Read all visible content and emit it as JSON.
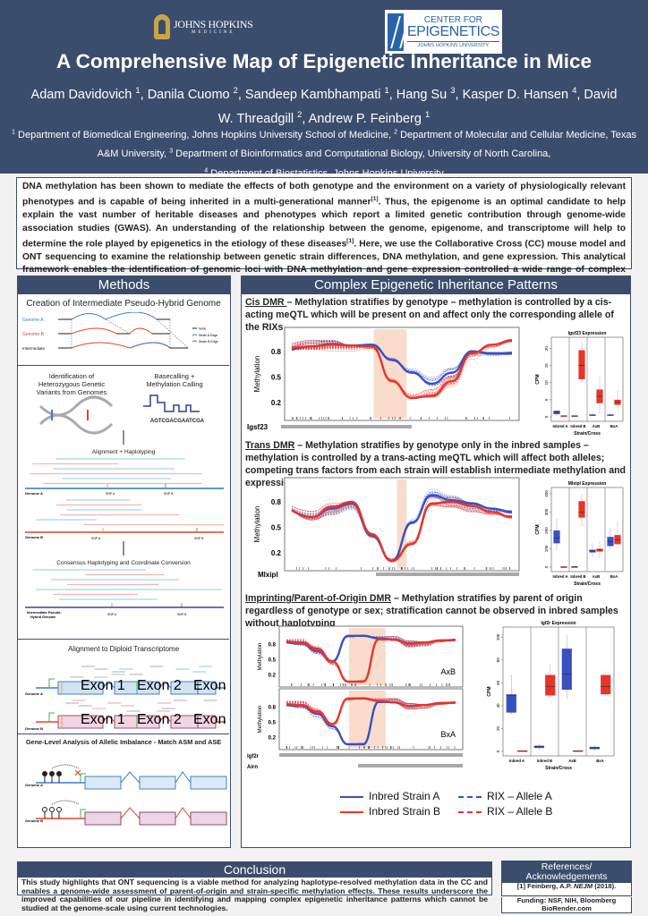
{
  "header": {
    "logo_left": {
      "name": "JOHNS HOPKINS",
      "sub": "MEDICINE"
    },
    "logo_right": {
      "line1": "CENTER FOR",
      "line2": "EPIGENETICS",
      "line3": "JOHNS HOPKINS UNIVERSITY"
    },
    "title": "A Comprehensive Map of Epigenetic Inheritance in Mice",
    "authors": [
      {
        "name": "Adam Davidovich",
        "aff": "1"
      },
      {
        "name": "Danila Cuomo",
        "aff": "2"
      },
      {
        "name": "Sandeep Kambhampati",
        "aff": "1"
      },
      {
        "name": "Hang Su",
        "aff": "3"
      },
      {
        "name": "Kasper D. Hansen",
        "aff": "4"
      },
      {
        "name": "David W. Threadgill",
        "aff": "2"
      },
      {
        "name": "Andrew P. Feinberg",
        "aff": "1"
      }
    ],
    "affiliations": [
      {
        "n": "1",
        "text": "Department of Biomedical Engineering, Johns Hopkins University School of Medicine,"
      },
      {
        "n": "2",
        "text": "Department of Molecular and Cellular Medicine, Texas A&M University,"
      },
      {
        "n": "3",
        "text": "Department of Bioinformatics and Computational Biology, University of North Carolina,"
      },
      {
        "n": "4",
        "text": "Department of Biostatistics, Johns Hopkins University"
      }
    ]
  },
  "intro": {
    "p1": "DNA methylation has been shown to mediate the effects of both genotype and the environment on a variety of physiologically relevant phenotypes and is capable of being inherited in a multi-generational manner",
    "cite1": "[1]",
    "p2": ". Thus, the epigenome is an optimal candidate to help explain the vast number of heritable diseases and phenotypes which report a limited genetic contribution through genome-wide association studies (GWAS). An understanding of the relationship between the genome, epigenome, and transcriptome will help to determine the role played by epigenetics in the etiology of these diseases",
    "cite2": "[1]",
    "p3": ". Here, we use the Collaborative Cross (CC) mouse model and ONT sequencing to examine the relationship between genetic strain differences, DNA methylation, and gene expression. This analytical framework enables the identification of genomic loci with DNA methylation and gene expression controlled a wide range of complex inheritance patterns."
  },
  "methods": {
    "heading": "Methods",
    "s1": {
      "title": "Creation of Intermediate Pseudo-Hybrid Genome",
      "genome_a": "Genome A",
      "genome_b": "Genome B",
      "intermediate": "Intermediate",
      "legend": [
        "Node",
        "Strain A Edge",
        "Strain B Edge"
      ]
    },
    "s2": {
      "title_left_1": "Identification of",
      "title_left_2": "Heterozygous Genetic",
      "title_left_3": "Variants from Genomes",
      "title_right_1": "Basecalling +",
      "title_right_2": "Methylation Calling",
      "sequence": "AGTCGACGAATCGA",
      "align_title": "Alignment + Haplotyping",
      "genome_a": "Genome A",
      "genome_b": "Genome B",
      "snp_a": "SNP A",
      "snp_b": "SNP B",
      "consensus_title": "Consensus Haplotyping and Coordinate Conversion",
      "intermediate_1": "Intermediate Pseudo-",
      "intermediate_2": "Hybrid Genome"
    },
    "s3": {
      "title": "Alignment to Diploid Transcriptome",
      "exons": [
        "Exon 1",
        "Exon 2",
        "Exon 3"
      ],
      "genome_a": "Genome A",
      "genome_b": "Genome B"
    },
    "s4": {
      "title": "Gene-Level Analysis of Allelic Imbalance - Match ASM and ASE",
      "genome_a": "Genome A",
      "genome_b": "Genome B"
    }
  },
  "results": {
    "heading": "Complex Epigenetic Inheritance Patterns",
    "cis": {
      "label": "Cis DMR ",
      "text": "– Methylation stratifies by genotype – methylation is controlled by a cis-acting meQTL which will be present on and affect only the corresponding allele of the RIXs"
    },
    "trans": {
      "label": "Trans DMR",
      "text": " – Methylation stratifies by genotype only in the inbred samples – methylation is controlled by a trans-acting meQTL which will affect both alleles; competing trans factors from each strain will establish intermediate methylation and expression levels in RIXs"
    },
    "imprint": {
      "label": "Imprinting/Parent-of-Origin DMR",
      "text": " – Methylation stratifies by parent of origin regardless of genotype or sex; stratification cannot be observed in inbred samples without haplotyping"
    },
    "legend": {
      "inbred_a": "Inbred Strain A",
      "inbred_b": "Inbred Strain B",
      "rix_a": "RIX – Allele A",
      "rix_b": "RIX – Allele B"
    },
    "colors": {
      "strain_a": "#3b4fc0",
      "strain_b": "#e8342a",
      "shade": "#f9dccc",
      "navy": "#3b4d6c"
    }
  },
  "chart_data": [
    {
      "type": "line",
      "ylabel": "Methylation",
      "yticks": [
        "0.8",
        "0.5",
        "0.2"
      ],
      "gene": "Igsf23",
      "series": [
        {
          "name": "Inbred Strain A",
          "values": [
            0.82,
            0.86,
            0.89,
            0.87,
            0.88,
            0.7,
            0.55,
            0.42,
            0.55,
            0.8,
            0.78,
            0.78
          ]
        },
        {
          "name": "Inbred Strain B",
          "values": [
            0.84,
            0.86,
            0.88,
            0.87,
            0.86,
            0.45,
            0.25,
            0.28,
            0.45,
            0.78,
            0.88,
            0.93
          ]
        }
      ]
    },
    {
      "type": "box",
      "title": "Igsf23 Expression",
      "ylabel": "CPM",
      "xlabel": "Strain/Cross",
      "ylim": [
        0,
        22
      ],
      "yticks": [
        "0",
        "5",
        "10",
        "15",
        "20"
      ],
      "categories": [
        "Inbred A",
        "Inbred B",
        "AxB",
        "BxA"
      ],
      "series": [
        {
          "name": "Allele A",
          "boxes": [
            [
              0.5,
              0.8,
              1.3,
              1.8,
              2
            ],
            [
              0.1,
              0.2,
              0.3,
              0.4,
              0.6
            ],
            [
              0.2,
              0.3,
              0.5,
              0.7,
              1
            ],
            [
              0.2,
              0.3,
              0.5,
              0.7,
              1.2
            ]
          ]
        },
        {
          "name": "Allele B",
          "boxes": [
            [
              0.1,
              0.2,
              0.3,
              0.4,
              0.5
            ],
            [
              10,
              11,
              15,
              19.5,
              22
            ],
            [
              1,
              4,
              6,
              8,
              12
            ],
            [
              2.5,
              3.5,
              4.3,
              5,
              7.5
            ]
          ]
        }
      ]
    },
    {
      "type": "line",
      "ylabel": "Methylation",
      "yticks": [
        "0.8",
        "0.5",
        "0.2"
      ],
      "gene": "Mlxipl",
      "series": [
        {
          "name": "Inbred Strain A",
          "values": [
            0.7,
            0.62,
            0.72,
            0.78,
            0.4,
            0.1,
            0.55,
            0.88,
            0.82,
            0.78,
            0.72,
            0.68
          ]
        },
        {
          "name": "Inbred Strain B",
          "values": [
            0.7,
            0.62,
            0.74,
            0.8,
            0.42,
            0.1,
            0.3,
            0.78,
            0.8,
            0.75,
            0.68,
            0.62
          ]
        }
      ]
    },
    {
      "type": "box",
      "title": "Mlxipl Expression",
      "ylabel": "CPM",
      "xlabel": "Strain/Cross",
      "ylim": [
        0,
        410
      ],
      "yticks": [
        "0",
        "100",
        "200",
        "300",
        "400"
      ],
      "categories": [
        "Inbred A",
        "Inbred B",
        "AxB",
        "BxA"
      ],
      "series": [
        {
          "name": "Allele A",
          "boxes": [
            [
              95,
              130,
              160,
              200,
              265
            ],
            [
              1,
              2,
              3,
              4,
              5
            ],
            [
              60,
              80,
              88,
              95,
              130
            ],
            [
              100,
              115,
              140,
              165,
              215
            ]
          ]
        },
        {
          "name": "Allele B",
          "boxes": [
            [
              0,
              1,
              2,
              3,
              4
            ],
            [
              225,
              270,
              300,
              360,
              400
            ],
            [
              50,
              85,
              95,
              100,
              140
            ],
            [
              105,
              125,
              150,
              175,
              245
            ]
          ]
        }
      ]
    },
    {
      "type": "line",
      "ylabel": "Methylation",
      "yticks": [
        "0.8",
        "0.5",
        "0.2"
      ],
      "annotation": "AxB",
      "series": [
        {
          "name": "RIX – Allele A",
          "values": [
            0.82,
            0.8,
            0.65,
            0.45,
            0.95,
            0.95,
            0.9,
            0.88,
            0.8,
            0.82,
            0.86,
            0.87
          ]
        },
        {
          "name": "RIX – Allele B",
          "values": [
            0.84,
            0.82,
            0.7,
            0.45,
            0.05,
            0.05,
            0.88,
            0.88,
            0.8,
            0.82,
            0.86,
            0.87
          ]
        }
      ]
    },
    {
      "type": "line",
      "ylabel": "Methylation",
      "yticks": [
        "0.8",
        "0.5",
        "0.2"
      ],
      "annotation": "BxA",
      "genes": [
        "Igf2r",
        "Airn"
      ],
      "series": [
        {
          "name": "RIX – Allele A",
          "values": [
            0.82,
            0.8,
            0.65,
            0.4,
            0.05,
            0.05,
            0.88,
            0.88,
            0.8,
            0.82,
            0.86,
            0.87
          ]
        },
        {
          "name": "RIX – Allele B",
          "values": [
            0.84,
            0.82,
            0.7,
            0.45,
            0.95,
            0.95,
            0.9,
            0.88,
            0.8,
            0.82,
            0.86,
            0.87
          ]
        }
      ]
    },
    {
      "type": "box",
      "title": "Igf2r Expression",
      "ylabel": "CPM",
      "xlabel": "Strain/Cross",
      "ylim": [
        0,
        105
      ],
      "yticks": [
        "0",
        "20",
        "40",
        "60",
        "80",
        "100"
      ],
      "categories": [
        "Inbred A",
        "Inbred B",
        "AxB",
        "BxA"
      ],
      "series": [
        {
          "name": "Allele A",
          "boxes": [
            [
              33,
              34,
              49,
              50,
              67
            ],
            [
              2,
              3,
              4,
              5,
              6
            ],
            [
              46,
              54,
              68,
              90,
              102
            ],
            [
              1,
              2,
              3,
              4,
              5
            ]
          ]
        },
        {
          "name": "Allele B",
          "boxes": [
            [
              0,
              0.3,
              0.5,
              0.8,
              1
            ],
            [
              46,
              49,
              57,
              67,
              77
            ],
            [
              0,
              0.3,
              0.5,
              0.8,
              1
            ],
            [
              49,
              50,
              57,
              67,
              70
            ]
          ]
        }
      ]
    }
  ],
  "conclusion": {
    "heading": "Conclusion",
    "text": "This study highlights that ONT sequencing is a viable method for analyzing haplotype-resolved methylation data in the CC and enables a genome-wide assessment of parent-of-origin and strain-specific methylation effects. These results underscore the improved capabilities of our pipeline in identifying and mapping complex epigenetic inheritance patterns which cannot be studied at the genome-scale using current technologies."
  },
  "references": {
    "heading": "References/ Acknowledgements",
    "ref1_pre": "[1] Feinberg, A.P. ",
    "ref1_journal": "NEJM",
    "ref1_post": " (2018).",
    "funding": "Funding: NSF, NIH, Bloomberg",
    "biorender": "BioRender.com"
  }
}
